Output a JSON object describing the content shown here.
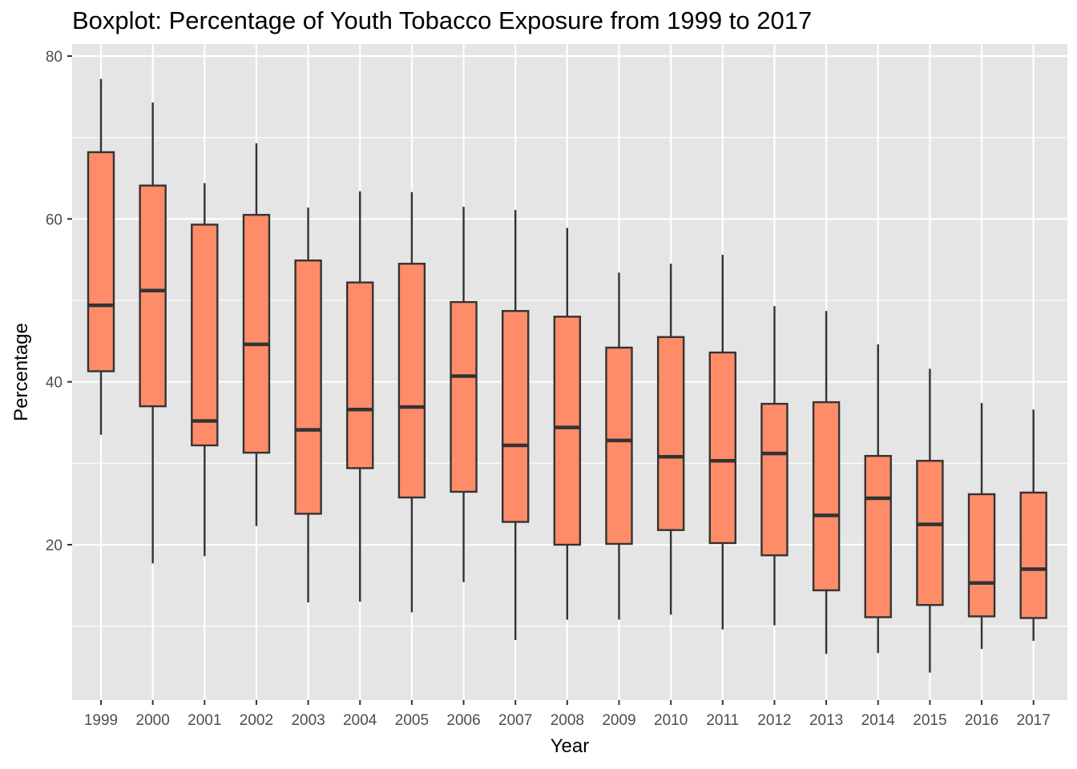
{
  "chart_data": {
    "type": "boxplot",
    "title": "Boxplot: Percentage of Youth Tobacco Exposure from 1999 to 2017",
    "xlabel": "Year",
    "ylabel": "Percentage",
    "ylim": [
      0,
      80
    ],
    "yticks": [
      20,
      40,
      60,
      80
    ],
    "grid": true,
    "box_fill": "#ff8c69",
    "box_stroke": "#333333",
    "panel_background": "#e5e5e5",
    "gridline_color": "#ffffff",
    "categories": [
      "1999",
      "2000",
      "2001",
      "2002",
      "2003",
      "2004",
      "2005",
      "2006",
      "2007",
      "2008",
      "2009",
      "2010",
      "2011",
      "2012",
      "2013",
      "2014",
      "2015",
      "2016",
      "2017"
    ],
    "boxes": [
      {
        "min": 33.5,
        "q1": 41.3,
        "median": 49.4,
        "q3": 68.2,
        "max": 77.2
      },
      {
        "min": 17.7,
        "q1": 37.0,
        "median": 51.2,
        "q3": 64.1,
        "max": 74.3
      },
      {
        "min": 18.6,
        "q1": 32.2,
        "median": 35.2,
        "q3": 59.3,
        "max": 64.4
      },
      {
        "min": 22.3,
        "q1": 31.3,
        "median": 44.6,
        "q3": 60.5,
        "max": 69.3
      },
      {
        "min": 12.9,
        "q1": 23.8,
        "median": 34.1,
        "q3": 54.9,
        "max": 61.4
      },
      {
        "min": 13.0,
        "q1": 29.4,
        "median": 36.6,
        "q3": 52.2,
        "max": 63.4
      },
      {
        "min": 11.7,
        "q1": 25.8,
        "median": 36.9,
        "q3": 54.5,
        "max": 63.3
      },
      {
        "min": 15.4,
        "q1": 26.5,
        "median": 40.7,
        "q3": 49.8,
        "max": 61.5
      },
      {
        "min": 8.3,
        "q1": 22.8,
        "median": 32.2,
        "q3": 48.7,
        "max": 61.1
      },
      {
        "min": 10.8,
        "q1": 20.0,
        "median": 34.4,
        "q3": 48.0,
        "max": 58.9
      },
      {
        "min": 10.8,
        "q1": 20.1,
        "median": 32.8,
        "q3": 44.2,
        "max": 53.4
      },
      {
        "min": 11.4,
        "q1": 21.8,
        "median": 30.8,
        "q3": 45.5,
        "max": 54.5
      },
      {
        "min": 9.6,
        "q1": 20.2,
        "median": 30.3,
        "q3": 43.6,
        "max": 55.6
      },
      {
        "min": 10.1,
        "q1": 18.7,
        "median": 31.2,
        "q3": 37.3,
        "max": 49.3
      },
      {
        "min": 6.6,
        "q1": 14.4,
        "median": 23.6,
        "q3": 37.5,
        "max": 48.7
      },
      {
        "min": 6.7,
        "q1": 11.1,
        "median": 25.7,
        "q3": 30.9,
        "max": 44.6
      },
      {
        "min": 4.3,
        "q1": 12.6,
        "median": 22.5,
        "q3": 30.3,
        "max": 41.6
      },
      {
        "min": 7.2,
        "q1": 11.2,
        "median": 15.3,
        "q3": 26.2,
        "max": 37.4
      },
      {
        "min": 8.2,
        "q1": 11.0,
        "median": 17.0,
        "q3": 26.4,
        "max": 36.6
      }
    ]
  }
}
